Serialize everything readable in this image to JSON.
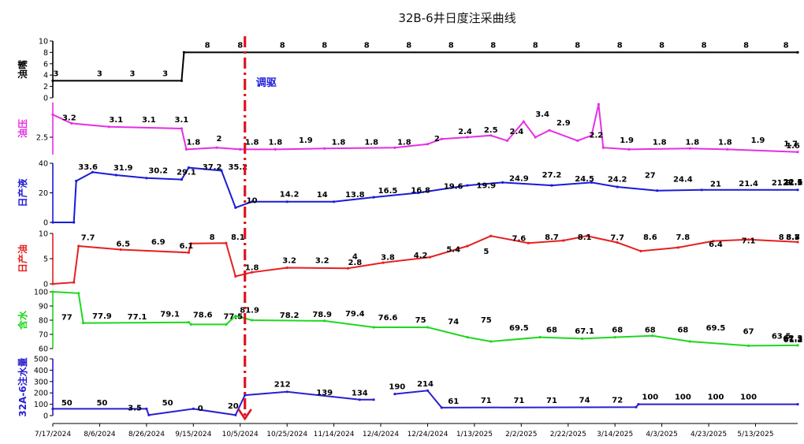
{
  "chart_data": {
    "type": "line",
    "title": "32B-6井日度注采曲线",
    "annotation": {
      "text": "调驱",
      "date": "2024-10-07",
      "color": "#1a1ad8"
    },
    "x_range": [
      "2024-07-17",
      "2025-05-31"
    ],
    "x_ticks": [
      "7/17/2024",
      "8/6/2024",
      "8/26/2024",
      "9/15/2024",
      "10/5/2024",
      "10/25/2024",
      "11/14/2024",
      "12/4/2024",
      "12/24/2024",
      "1/13/2025",
      "2/2/2025",
      "2/22/2025",
      "3/14/2025",
      "4/3/2025",
      "4/23/2025",
      "5/13/2025"
    ],
    "panels": [
      {
        "ylabel": "油嘴",
        "color": "#000000",
        "ylim": [
          0,
          10
        ],
        "yticks": [
          0,
          2,
          4,
          6,
          8,
          10
        ],
        "series": [
          [
            "2024-07-17",
            3
          ],
          [
            "2024-09-10",
            3
          ],
          [
            "2024-09-11",
            8
          ],
          [
            "2025-05-31",
            8
          ]
        ],
        "labels": [
          [
            "2024-07-17",
            3
          ],
          [
            "2024-08-06",
            3
          ],
          [
            "2024-08-20",
            3
          ],
          [
            "2024-09-03",
            3
          ],
          [
            "2024-09-21",
            8
          ],
          [
            "2024-10-05",
            8
          ],
          [
            "2024-10-23",
            8
          ],
          [
            "2024-11-10",
            8
          ],
          [
            "2024-11-28",
            8
          ],
          [
            "2024-12-16",
            8
          ],
          [
            "2025-01-03",
            8
          ],
          [
            "2025-01-21",
            8
          ],
          [
            "2025-02-08",
            8
          ],
          [
            "2025-02-26",
            8
          ],
          [
            "2025-03-16",
            8
          ],
          [
            "2025-04-03",
            8
          ],
          [
            "2025-04-21",
            8
          ],
          [
            "2025-05-09",
            8
          ],
          [
            "2025-05-26",
            8
          ]
        ]
      },
      {
        "ylabel": "油压",
        "color": "#e62ee6",
        "ylim": [
          1.5,
          4.5
        ],
        "yticks": [
          2.5
        ],
        "series": [
          [
            "2024-07-17",
            3.8
          ],
          [
            "2024-07-25",
            3.3
          ],
          [
            "2024-08-10",
            3.1
          ],
          [
            "2024-09-10",
            3.0
          ],
          [
            "2024-09-12",
            1.8
          ],
          [
            "2024-09-25",
            1.9
          ],
          [
            "2024-10-05",
            1.8
          ],
          [
            "2024-10-20",
            1.8
          ],
          [
            "2024-11-10",
            1.85
          ],
          [
            "2024-12-10",
            1.9
          ],
          [
            "2024-12-24",
            2.1
          ],
          [
            "2024-12-30",
            2.4
          ],
          [
            "2025-01-10",
            2.5
          ],
          [
            "2025-01-20",
            2.6
          ],
          [
            "2025-01-27",
            2.3
          ],
          [
            "2025-02-03",
            3.4
          ],
          [
            "2025-02-08",
            2.5
          ],
          [
            "2025-02-14",
            2.9
          ],
          [
            "2025-02-26",
            2.3
          ],
          [
            "2025-03-04",
            2.6
          ],
          [
            "2025-03-07",
            4.4
          ],
          [
            "2025-03-09",
            1.9
          ],
          [
            "2025-03-20",
            1.8
          ],
          [
            "2025-04-15",
            1.85
          ],
          [
            "2025-05-01",
            1.8
          ],
          [
            "2025-05-31",
            1.65
          ]
        ],
        "labels": [
          [
            "2024-07-24",
            3.2
          ],
          [
            "2024-08-13",
            3.1
          ],
          [
            "2024-08-27",
            3.1
          ],
          [
            "2024-09-10",
            3.1
          ],
          [
            "2024-09-15",
            1.8
          ],
          [
            "2024-09-26",
            2
          ],
          [
            "2024-10-10",
            1.8
          ],
          [
            "2024-10-20",
            1.8
          ],
          [
            "2024-11-02",
            1.9
          ],
          [
            "2024-11-16",
            1.8
          ],
          [
            "2024-11-30",
            1.8
          ],
          [
            "2024-12-14",
            1.8
          ],
          [
            "2024-12-28",
            2
          ],
          [
            "2025-01-09",
            2.4
          ],
          [
            "2025-01-20",
            2.5
          ],
          [
            "2025-01-31",
            2.4
          ],
          [
            "2025-02-11",
            3.4
          ],
          [
            "2025-02-20",
            2.9
          ],
          [
            "2025-03-06",
            2.2
          ],
          [
            "2025-03-19",
            1.9
          ],
          [
            "2025-04-02",
            1.8
          ],
          [
            "2025-04-16",
            1.8
          ],
          [
            "2025-04-30",
            1.8
          ],
          [
            "2025-05-14",
            1.9
          ],
          [
            "2025-05-28",
            1.7
          ],
          [
            "2025-06-11",
            1.6
          ]
        ]
      },
      {
        "ylabel": "日产液",
        "color": "#1a1ad8",
        "ylim": [
          0,
          40
        ],
        "yticks": [
          0,
          20,
          40
        ],
        "series": [
          [
            "2024-07-17",
            0
          ],
          [
            "2024-07-26",
            0
          ],
          [
            "2024-07-27",
            28
          ],
          [
            "2024-08-03",
            34
          ],
          [
            "2024-08-13",
            32
          ],
          [
            "2024-08-26",
            30
          ],
          [
            "2024-09-10",
            29
          ],
          [
            "2024-09-13",
            37
          ],
          [
            "2024-09-27",
            35
          ],
          [
            "2024-10-03",
            10
          ],
          [
            "2024-10-10",
            14
          ],
          [
            "2024-10-25",
            14
          ],
          [
            "2024-11-14",
            14
          ],
          [
            "2024-12-01",
            17
          ],
          [
            "2024-12-20",
            20
          ],
          [
            "2025-01-10",
            25
          ],
          [
            "2025-01-25",
            27
          ],
          [
            "2025-02-15",
            25
          ],
          [
            "2025-03-04",
            27
          ],
          [
            "2025-03-15",
            24
          ],
          [
            "2025-04-01",
            21.5
          ],
          [
            "2025-04-20",
            22
          ],
          [
            "2025-05-31",
            22
          ]
        ],
        "labels": [
          [
            "2024-08-01",
            33.6
          ],
          [
            "2024-08-16",
            31.9
          ],
          [
            "2024-08-31",
            30.2
          ],
          [
            "2024-09-12",
            29.1
          ],
          [
            "2024-09-23",
            37.2
          ],
          [
            "2024-10-04",
            35.2
          ],
          [
            "2024-10-10",
            10
          ],
          [
            "2024-10-26",
            14.2
          ],
          [
            "2024-11-09",
            14
          ],
          [
            "2024-11-23",
            13.8
          ],
          [
            "2024-12-07",
            16.5
          ],
          [
            "2024-12-21",
            16.8
          ],
          [
            "2025-01-04",
            19.6
          ],
          [
            "2025-01-18",
            19.9
          ],
          [
            "2025-02-01",
            24.9
          ],
          [
            "2025-02-15",
            27.2
          ],
          [
            "2025-03-01",
            24.5
          ],
          [
            "2025-03-15",
            24.2
          ],
          [
            "2025-03-29",
            27
          ],
          [
            "2025-04-12",
            24.4
          ],
          [
            "2025-04-26",
            21
          ],
          [
            "2025-05-10",
            21.4
          ],
          [
            "2025-05-24",
            21.9
          ],
          [
            "2025-06-07",
            21.9
          ],
          [
            "2025-06-21",
            22.5
          ],
          [
            "2025-07-05",
            22.1
          ]
        ]
      },
      {
        "ylabel": "日产油",
        "color": "#e62020",
        "ylim": [
          0,
          10
        ],
        "yticks": [
          0,
          5,
          10
        ],
        "series": [
          [
            "2024-07-17",
            0
          ],
          [
            "2024-07-26",
            0.3
          ],
          [
            "2024-07-28",
            7.5
          ],
          [
            "2024-08-15",
            6.8
          ],
          [
            "2024-09-13",
            6.2
          ],
          [
            "2024-09-14",
            8
          ],
          [
            "2024-09-29",
            8.1
          ],
          [
            "2024-10-03",
            1.5
          ],
          [
            "2024-10-10",
            2.3
          ],
          [
            "2024-10-25",
            3.2
          ],
          [
            "2024-11-20",
            3.1
          ],
          [
            "2024-12-05",
            4.2
          ],
          [
            "2024-12-25",
            5.3
          ],
          [
            "2025-01-10",
            7.5
          ],
          [
            "2025-01-20",
            9.5
          ],
          [
            "2025-02-05",
            8.1
          ],
          [
            "2025-02-20",
            8.6
          ],
          [
            "2025-03-02",
            9.5
          ],
          [
            "2025-03-15",
            8.2
          ],
          [
            "2025-03-25",
            6.5
          ],
          [
            "2025-04-10",
            7.2
          ],
          [
            "2025-04-25",
            8.5
          ],
          [
            "2025-05-10",
            8.8
          ],
          [
            "2025-05-31",
            8.3
          ]
        ],
        "labels": [
          [
            "2024-08-01",
            7.7
          ],
          [
            "2024-08-16",
            6.5
          ],
          [
            "2024-08-31",
            6.9
          ],
          [
            "2024-09-12",
            6.1
          ],
          [
            "2024-09-23",
            8
          ],
          [
            "2024-10-04",
            8.1
          ],
          [
            "2024-10-10",
            1.8
          ],
          [
            "2024-10-26",
            3.2
          ],
          [
            "2024-11-09",
            3.2
          ],
          [
            "2024-11-23",
            2.8
          ],
          [
            "2024-11-23",
            4
          ],
          [
            "2024-12-07",
            3.8
          ],
          [
            "2024-12-21",
            4.2
          ],
          [
            "2025-01-04",
            5.4
          ],
          [
            "2025-01-18",
            5
          ],
          [
            "2025-02-01",
            7.6
          ],
          [
            "2025-02-15",
            8.7
          ],
          [
            "2025-03-01",
            8.1
          ],
          [
            "2025-03-15",
            7.7
          ],
          [
            "2025-03-29",
            8.6
          ],
          [
            "2025-04-12",
            7.8
          ],
          [
            "2025-04-26",
            6.4
          ],
          [
            "2025-05-10",
            7.1
          ],
          [
            "2025-05-24",
            8
          ],
          [
            "2025-06-07",
            8.8
          ],
          [
            "2025-06-21",
            8.7
          ],
          [
            "2025-07-05",
            8.3
          ]
        ]
      },
      {
        "ylabel": "含水",
        "color": "#1ed81e",
        "ylim": [
          60,
          100
        ],
        "yticks": [
          60,
          70,
          80,
          90,
          100
        ],
        "series": [
          [
            "2024-07-17",
            100
          ],
          [
            "2024-07-28",
            99
          ],
          [
            "2024-07-30",
            78
          ],
          [
            "2024-09-13",
            78.5
          ],
          [
            "2024-09-14",
            77
          ],
          [
            "2024-09-29",
            77
          ],
          [
            "2024-10-03",
            83
          ],
          [
            "2024-10-10",
            80
          ],
          [
            "2024-11-10",
            79.5
          ],
          [
            "2024-12-01",
            75
          ],
          [
            "2024-12-24",
            75
          ],
          [
            "2025-01-10",
            68
          ],
          [
            "2025-01-20",
            65
          ],
          [
            "2025-02-10",
            68
          ],
          [
            "2025-02-28",
            67
          ],
          [
            "2025-03-14",
            68
          ],
          [
            "2025-03-30",
            69
          ],
          [
            "2025-04-15",
            65
          ],
          [
            "2025-05-10",
            62
          ],
          [
            "2025-05-31",
            62.3
          ]
        ],
        "labels": [
          [
            "2024-07-23",
            77
          ],
          [
            "2024-08-07",
            77.9
          ],
          [
            "2024-08-22",
            77.1
          ],
          [
            "2024-09-05",
            79.1
          ],
          [
            "2024-09-19",
            78.6
          ],
          [
            "2024-10-02",
            77.5
          ],
          [
            "2024-10-09",
            81.9
          ],
          [
            "2024-10-26",
            78.2
          ],
          [
            "2024-11-09",
            78.9
          ],
          [
            "2024-11-23",
            79.4
          ],
          [
            "2024-12-07",
            76.6
          ],
          [
            "2024-12-21",
            75
          ],
          [
            "2025-01-04",
            74
          ],
          [
            "2025-01-18",
            75
          ],
          [
            "2025-02-01",
            69.5
          ],
          [
            "2025-02-15",
            68
          ],
          [
            "2025-03-01",
            67.1
          ],
          [
            "2025-03-15",
            68
          ],
          [
            "2025-03-29",
            68
          ],
          [
            "2025-04-12",
            68
          ],
          [
            "2025-04-26",
            69.5
          ],
          [
            "2025-05-10",
            67
          ],
          [
            "2025-05-24",
            63.5
          ],
          [
            "2025-06-07",
            61.2
          ],
          [
            "2025-06-21",
            61.3
          ],
          [
            "2025-07-05",
            62.3
          ]
        ]
      },
      {
        "ylabel": "32A-6注水量",
        "color": "#2a1fd0",
        "ylim": [
          0,
          500
        ],
        "yticks": [
          0,
          100,
          200,
          300,
          400,
          500
        ],
        "series": [
          [
            "2024-07-17",
            60
          ],
          [
            "2024-08-26",
            60
          ],
          [
            "2024-08-27",
            5
          ],
          [
            "2024-09-15",
            60
          ],
          [
            "2024-10-03",
            5
          ],
          [
            "2024-10-07",
            180
          ],
          [
            "2024-10-25",
            210
          ],
          [
            "2024-11-25",
            140
          ],
          [
            "2024-12-01",
            140
          ],
          [
            "2024-12-05",
            null
          ],
          [
            "2024-12-10",
            190
          ],
          [
            "2024-12-24",
            220
          ],
          [
            "2024-12-30",
            70
          ],
          [
            "2025-03-23",
            75
          ],
          [
            "2025-03-24",
            100
          ],
          [
            "2025-05-31",
            100
          ]
        ],
        "labels": [
          [
            "2024-07-23",
            50
          ],
          [
            "2024-08-07",
            50
          ],
          [
            "2024-08-21",
            3.5
          ],
          [
            "2024-09-04",
            50
          ],
          [
            "2024-09-18",
            0
          ],
          [
            "2024-10-02",
            20
          ],
          [
            "2024-10-23",
            212
          ],
          [
            "2024-11-10",
            139
          ],
          [
            "2024-11-25",
            134
          ],
          [
            "2024-12-11",
            190
          ],
          [
            "2024-12-23",
            214
          ],
          [
            "2025-01-04",
            61
          ],
          [
            "2025-01-18",
            71
          ],
          [
            "2025-02-01",
            71
          ],
          [
            "2025-02-15",
            71
          ],
          [
            "2025-03-01",
            74
          ],
          [
            "2025-03-15",
            72
          ],
          [
            "2025-03-29",
            100
          ],
          [
            "2025-04-12",
            100
          ],
          [
            "2025-04-26",
            100
          ],
          [
            "2025-05-10",
            100
          ]
        ]
      }
    ]
  }
}
